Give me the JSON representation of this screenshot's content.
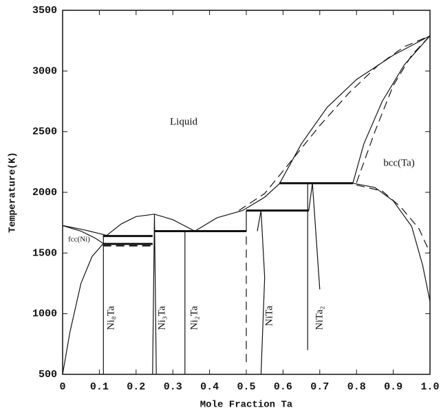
{
  "chart_data": {
    "type": "line",
    "x_label": "Mole Fraction Ta",
    "y_label": "Temperature(K)",
    "xlim": [
      0,
      1
    ],
    "ylim": [
      500,
      3500
    ],
    "xticks": [
      0,
      0.1,
      0.2,
      0.3,
      0.4,
      0.5,
      0.6,
      0.7,
      0.8,
      0.9,
      {
        "value": 1,
        "label": "1.0"
      }
    ],
    "yticks": [
      500,
      1000,
      1500,
      2000,
      2500,
      3000,
      3500
    ],
    "annotations": [
      "Liquid",
      "bcc(Ta)",
      "fcc(Ni)",
      "Ni₈Ta",
      "Ni₃Ta",
      "Ni₂Ta",
      "NiTa",
      "NiTa₂"
    ],
    "series": [
      {
        "color": "#111",
        "dash": false,
        "width": 1.2,
        "x": [
          0,
          0.06,
          0.12
        ],
        "values": [
          1726,
          1690,
          1645
        ]
      },
      {
        "color": "#111",
        "dash": false,
        "width": 1.2,
        "x": [
          0,
          0.05,
          0.09,
          0.11
        ],
        "values": [
          1726,
          1680,
          1620,
          1580
        ]
      },
      {
        "color": "#111",
        "dash": false,
        "width": 1.2,
        "x": [
          0,
          0.02,
          0.05,
          0.08,
          0.11
        ],
        "values": [
          500,
          850,
          1250,
          1470,
          1575
        ]
      },
      {
        "color": "#111",
        "dash": false,
        "width": 1.2,
        "x": [
          0.12,
          0.16,
          0.2,
          0.25,
          0.3,
          0.36
        ],
        "values": [
          1645,
          1740,
          1800,
          1820,
          1775,
          1680
        ]
      },
      {
        "color": "#111",
        "dash": false,
        "width": 1.2,
        "x": [
          0.36,
          0.42,
          0.49,
          0.55,
          0.59
        ],
        "values": [
          1680,
          1790,
          1850,
          1960,
          2070
        ]
      },
      {
        "color": "#111",
        "dash": false,
        "width": 1.2,
        "x": [
          0.59,
          0.65,
          0.72,
          0.8,
          0.9,
          1
        ],
        "values": [
          2070,
          2400,
          2700,
          2930,
          3130,
          3290
        ]
      },
      {
        "color": "#111",
        "dash": false,
        "width": 1.2,
        "x": [
          0.79,
          0.82,
          0.87,
          0.93,
          1
        ],
        "values": [
          2075,
          2400,
          2750,
          3050,
          3290
        ]
      },
      {
        "color": "#111",
        "dash": false,
        "width": 1.2,
        "x": [
          0.79,
          0.85,
          0.9,
          0.95,
          0.98,
          1
        ],
        "values": [
          2075,
          2040,
          1930,
          1720,
          1400,
          1100
        ]
      },
      {
        "color": "#111",
        "dash": false,
        "width": 3,
        "x": [
          0.11,
          0.245
        ],
        "values": [
          1640,
          1640
        ]
      },
      {
        "color": "#111",
        "dash": false,
        "width": 3,
        "x": [
          0.11,
          0.245
        ],
        "values": [
          1575,
          1575
        ]
      },
      {
        "color": "#111",
        "dash": false,
        "width": 3,
        "x": [
          0.25,
          0.5
        ],
        "values": [
          1680,
          1680
        ]
      },
      {
        "color": "#111",
        "dash": false,
        "width": 3,
        "x": [
          0.5,
          0.67
        ],
        "values": [
          1850,
          1850
        ]
      },
      {
        "color": "#111",
        "dash": false,
        "width": 3,
        "x": [
          0.59,
          0.79
        ],
        "values": [
          2075,
          2075
        ]
      },
      {
        "color": "#111",
        "dash": false,
        "width": 1.2,
        "x": [
          0.111,
          0.111
        ],
        "values": [
          500,
          1640
        ]
      },
      {
        "color": "#111",
        "dash": false,
        "width": 1.2,
        "x": [
          0.245,
          0.25,
          0.255
        ],
        "values": [
          500,
          1820,
          500
        ]
      },
      {
        "color": "#111",
        "dash": false,
        "width": 1.2,
        "x": [
          0.333,
          0.333
        ],
        "values": [
          500,
          1680
        ]
      },
      {
        "color": "#111",
        "dash": false,
        "width": 1.2,
        "x": [
          0.5,
          0.5
        ],
        "values": [
          1680,
          1850
        ]
      },
      {
        "color": "#111",
        "dash": false,
        "width": 1.2,
        "x": [
          0.53,
          0.54,
          0.55,
          0.54
        ],
        "values": [
          1680,
          1850,
          1300,
          500
        ]
      },
      {
        "color": "#111",
        "dash": false,
        "width": 1.2,
        "x": [
          0.667,
          0.667
        ],
        "values": [
          700,
          2075
        ]
      },
      {
        "color": "#111",
        "dash": false,
        "width": 1.2,
        "x": [
          0.67,
          0.68,
          0.7
        ],
        "values": [
          1850,
          2075,
          1200
        ]
      },
      {
        "color": "#111",
        "dash": true,
        "width": 1.2,
        "x": [
          0.5,
          0.5
        ],
        "values": [
          600,
          1680
        ]
      },
      {
        "color": "#111",
        "dash": true,
        "width": 2,
        "x": [
          0.11,
          0.245
        ],
        "values": [
          1560,
          1560
        ]
      },
      {
        "color": "#111",
        "dash": true,
        "width": 1.2,
        "x": [
          0.48,
          0.55,
          0.62,
          0.7,
          0.78,
          0.86,
          0.93,
          1
        ],
        "values": [
          1850,
          1990,
          2250,
          2550,
          2820,
          3050,
          3200,
          3290
        ]
      },
      {
        "color": "#111",
        "dash": true,
        "width": 1.2,
        "x": [
          0.8,
          0.85,
          0.9,
          0.95,
          1
        ],
        "values": [
          2080,
          2500,
          2880,
          3130,
          3290
        ]
      },
      {
        "color": "#111",
        "dash": true,
        "width": 1.2,
        "x": [
          0.8,
          0.87,
          0.92,
          0.97,
          1
        ],
        "values": [
          2060,
          2010,
          1880,
          1700,
          1500
        ]
      }
    ]
  }
}
